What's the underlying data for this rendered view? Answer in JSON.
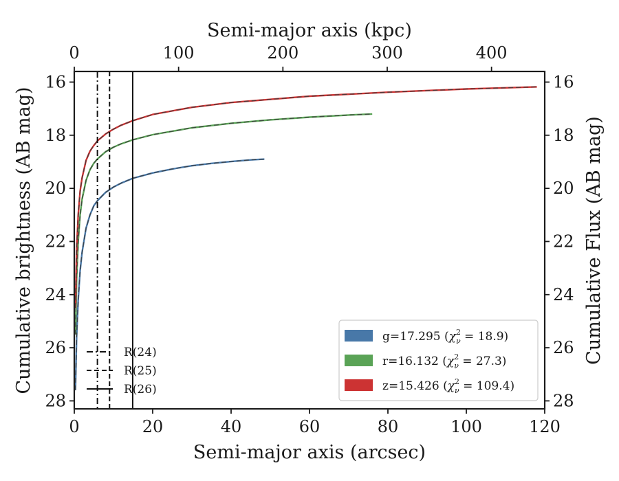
{
  "chart_data": {
    "type": "line",
    "xlabel": "Semi-major axis (arcsec)",
    "x2label": "Semi-major axis (kpc)",
    "ylabel": "Cumulative brightness (AB mag)",
    "y2label": "Cumulative Flux (AB mag)",
    "xlim": [
      0,
      120
    ],
    "ylim": [
      28.3,
      15.6
    ],
    "x2lim": [
      0,
      451
    ],
    "x_ticks": [
      "0",
      "20",
      "40",
      "60",
      "80",
      "100",
      "120"
    ],
    "x2_ticks": [
      "0",
      "100",
      "200",
      "300",
      "400"
    ],
    "y_ticks": [
      "16",
      "18",
      "20",
      "22",
      "24",
      "26",
      "28"
    ],
    "grid": false,
    "legend_position": "lower-right",
    "series": [
      {
        "name": "g=17.295 ($\\chi^2_\\nu=18.9$)",
        "label_main": "g=17.295 (",
        "label_chi": "χ",
        "label_sup": "2",
        "label_sub": "ν",
        "label_tail": " = 18.9)",
        "color": "#4878a8",
        "x": [
          0.3,
          0.6,
          1,
          1.5,
          2,
          3,
          4,
          5,
          6,
          8,
          10,
          12,
          15,
          20,
          25,
          30,
          35,
          40,
          45,
          48.5
        ],
        "y": [
          27.6,
          25.6,
          24.2,
          23.1,
          22.4,
          21.5,
          21.0,
          20.65,
          20.45,
          20.15,
          19.95,
          19.8,
          19.62,
          19.42,
          19.27,
          19.15,
          19.06,
          18.99,
          18.93,
          18.9
        ]
      },
      {
        "name": "r=16.132 ($\\chi^2_\\nu=27.3$)",
        "label_main": "r=16.132 (",
        "label_chi": "χ",
        "label_sup": "2",
        "label_sub": "ν",
        "label_tail": " = 27.3)",
        "color": "#5aa356",
        "x": [
          0.3,
          0.6,
          1,
          1.5,
          2,
          3,
          4,
          5,
          6,
          8,
          10,
          12,
          15,
          20,
          30,
          40,
          50,
          60,
          70,
          76
        ],
        "y": [
          25.5,
          23.4,
          22.0,
          21.0,
          20.4,
          19.7,
          19.3,
          19.05,
          18.88,
          18.62,
          18.45,
          18.32,
          18.17,
          17.98,
          17.72,
          17.55,
          17.42,
          17.32,
          17.24,
          17.2
        ]
      },
      {
        "name": "z=15.426 ($\\chi^2_\\nu=109.4$)",
        "label_main": "z=15.426 (",
        "label_chi": "χ",
        "label_sup": "2",
        "label_sub": "ν",
        "label_tail": " = 109.4)",
        "color": "#cc3333",
        "x": [
          0.3,
          0.6,
          1,
          1.5,
          2,
          3,
          4,
          5,
          6,
          8,
          10,
          12,
          15,
          20,
          30,
          40,
          60,
          80,
          100,
          118
        ],
        "y": [
          24.5,
          22.3,
          21.0,
          20.1,
          19.6,
          18.95,
          18.6,
          18.38,
          18.2,
          17.95,
          17.77,
          17.62,
          17.45,
          17.22,
          16.95,
          16.77,
          16.53,
          16.38,
          16.26,
          16.18
        ]
      }
    ],
    "vlines": [
      {
        "label": "R(24)",
        "x": 5.9,
        "style": "dashdot"
      },
      {
        "label": "R(25)",
        "x": 9.0,
        "style": "dashed"
      },
      {
        "label": "R(26)",
        "x": 14.9,
        "style": "solid"
      }
    ]
  }
}
